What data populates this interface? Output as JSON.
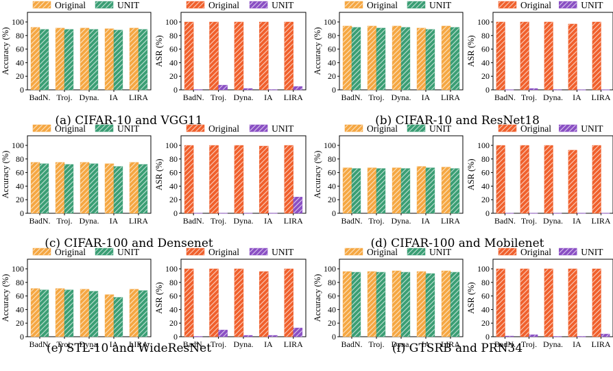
{
  "colors": {
    "acc_original": "#f5a742",
    "acc_unit": "#3a9e74",
    "asr_original": "#f0602c",
    "asr_unit": "#8a4fc4"
  },
  "chart_data": [
    {
      "type": "bar",
      "caption": "",
      "ylabel": "Accuracy (%)",
      "ylim": [
        0,
        100
      ],
      "yticks": [
        0,
        20,
        40,
        60,
        80,
        100
      ],
      "categories": [
        "BadN.",
        "Troj.",
        "Dyna.",
        "IA",
        "LIRA"
      ],
      "legend": "top",
      "series": [
        {
          "name": "Original",
          "values": [
            92,
            91,
            91,
            90,
            91
          ]
        },
        {
          "name": "UNIT",
          "values": [
            89,
            89,
            89,
            88,
            89
          ]
        }
      ]
    },
    {
      "type": "bar",
      "caption": "(a) CIFAR-10 and VGG11",
      "ylabel": "ASR (%)",
      "ylim": [
        0,
        100
      ],
      "yticks": [
        0,
        20,
        40,
        60,
        80,
        100
      ],
      "categories": [
        "BadN.",
        "Troj.",
        "Dyna.",
        "IA",
        "LIRA"
      ],
      "legend": "top",
      "series": [
        {
          "name": "Original",
          "values": [
            100,
            100,
            100,
            100,
            100
          ]
        },
        {
          "name": "UNIT",
          "values": [
            0.5,
            7,
            2,
            0.5,
            5
          ]
        }
      ]
    },
    {
      "type": "bar",
      "caption": "",
      "ylabel": "Accuracy (%)",
      "ylim": [
        0,
        100
      ],
      "yticks": [
        0,
        20,
        40,
        60,
        80,
        100
      ],
      "categories": [
        "BadN.",
        "Troj.",
        "Dyna.",
        "IA",
        "LIRA"
      ],
      "legend": "top",
      "series": [
        {
          "name": "Original",
          "values": [
            94,
            94,
            94,
            91,
            94
          ]
        },
        {
          "name": "UNIT",
          "values": [
            92,
            91,
            92,
            89,
            92
          ]
        }
      ]
    },
    {
      "type": "bar",
      "caption": "(b) CIFAR-10 and ResNet18",
      "ylabel": "ASR (%)",
      "ylim": [
        0,
        100
      ],
      "yticks": [
        0,
        20,
        40,
        60,
        80,
        100
      ],
      "categories": [
        "BadN.",
        "Troj.",
        "Dyna.",
        "IA",
        "LIRA"
      ],
      "legend": "top",
      "series": [
        {
          "name": "Original",
          "values": [
            100,
            100,
            100,
            97,
            100
          ]
        },
        {
          "name": "UNIT",
          "values": [
            0.3,
            2,
            0.5,
            0.3,
            0.3
          ]
        }
      ]
    },
    {
      "type": "bar",
      "caption": "",
      "ylabel": "Accuracy (%)",
      "ylim": [
        0,
        100
      ],
      "yticks": [
        0,
        20,
        40,
        60,
        80,
        100
      ],
      "categories": [
        "BadN.",
        "Troj.",
        "Dyna.",
        "IA",
        "LIRA"
      ],
      "legend": "top",
      "series": [
        {
          "name": "Original",
          "values": [
            75,
            75,
            75,
            73,
            75
          ]
        },
        {
          "name": "UNIT",
          "values": [
            73,
            72,
            73,
            69,
            72
          ]
        }
      ]
    },
    {
      "type": "bar",
      "caption": "(c) CIFAR-100 and Densenet",
      "ylabel": "ASR (%)",
      "ylim": [
        0,
        100
      ],
      "yticks": [
        0,
        20,
        40,
        60,
        80,
        100
      ],
      "categories": [
        "BadN.",
        "Troj.",
        "Dyna.",
        "IA",
        "LIRA"
      ],
      "legend": "top",
      "series": [
        {
          "name": "Original",
          "values": [
            100,
            100,
            100,
            99,
            100
          ]
        },
        {
          "name": "UNIT",
          "values": [
            0.3,
            0.3,
            0.3,
            0.3,
            24
          ]
        }
      ]
    },
    {
      "type": "bar",
      "caption": "",
      "ylabel": "Accuracy (%)",
      "ylim": [
        0,
        100
      ],
      "yticks": [
        0,
        20,
        40,
        60,
        80,
        100
      ],
      "categories": [
        "BadN.",
        "Troj.",
        "Dyna.",
        "IA",
        "LIRA"
      ],
      "legend": "top",
      "series": [
        {
          "name": "Original",
          "values": [
            67,
            67,
            67,
            69,
            68
          ]
        },
        {
          "name": "UNIT",
          "values": [
            66,
            66,
            66,
            67,
            66
          ]
        }
      ]
    },
    {
      "type": "bar",
      "caption": "(d) CIFAR-100 and Mobilenet",
      "ylabel": "ASR (%)",
      "ylim": [
        0,
        100
      ],
      "yticks": [
        0,
        20,
        40,
        60,
        80,
        100
      ],
      "categories": [
        "BadN.",
        "Troj.",
        "Dyna.",
        "IA",
        "LIRA"
      ],
      "legend": "top",
      "series": [
        {
          "name": "Original",
          "values": [
            100,
            100,
            100,
            93,
            100
          ]
        },
        {
          "name": "UNIT",
          "values": [
            0.3,
            0.3,
            0.3,
            0.3,
            0.3
          ]
        }
      ]
    },
    {
      "type": "bar",
      "caption": "",
      "ylabel": "Accuracy (%)",
      "ylim": [
        0,
        100
      ],
      "yticks": [
        0,
        20,
        40,
        60,
        80,
        100
      ],
      "categories": [
        "BadN.",
        "Troj.",
        "Dyna.",
        "IA",
        "LIRA"
      ],
      "legend": "top",
      "series": [
        {
          "name": "Original",
          "values": [
            71,
            71,
            70,
            62,
            70
          ]
        },
        {
          "name": "UNIT",
          "values": [
            69,
            69,
            67,
            58,
            68
          ]
        }
      ]
    },
    {
      "type": "bar",
      "caption": "(e) STL-10 and WideResNet",
      "ylabel": "ASR (%)",
      "ylim": [
        0,
        100
      ],
      "yticks": [
        0,
        20,
        40,
        60,
        80,
        100
      ],
      "categories": [
        "BadN.",
        "Troj.",
        "Dyna.",
        "IA",
        "LIRA"
      ],
      "legend": "top",
      "series": [
        {
          "name": "Original",
          "values": [
            100,
            100,
            100,
            96,
            100
          ]
        },
        {
          "name": "UNIT",
          "values": [
            0.5,
            10,
            2,
            2,
            13
          ]
        }
      ]
    },
    {
      "type": "bar",
      "caption": "",
      "ylabel": "Accuracy (%)",
      "ylim": [
        0,
        100
      ],
      "yticks": [
        0,
        20,
        40,
        60,
        80,
        100
      ],
      "categories": [
        "BadN.",
        "Troj.",
        "Dyna.",
        "IA",
        "LIRA"
      ],
      "legend": "top",
      "series": [
        {
          "name": "Original",
          "values": [
            96,
            96,
            97,
            96,
            97
          ]
        },
        {
          "name": "UNIT",
          "values": [
            95,
            95,
            95,
            93,
            95
          ]
        }
      ]
    },
    {
      "type": "bar",
      "caption": "(f) GTSRB and PRN34",
      "ylabel": "ASR (%)",
      "ylim": [
        0,
        100
      ],
      "yticks": [
        0,
        20,
        40,
        60,
        80,
        100
      ],
      "categories": [
        "BadN.",
        "Troj.",
        "Dyna.",
        "IA",
        "LIRA"
      ],
      "legend": "top",
      "series": [
        {
          "name": "Original",
          "values": [
            100,
            100,
            100,
            100,
            100
          ]
        },
        {
          "name": "UNIT",
          "values": [
            1,
            3,
            0.5,
            0.5,
            4
          ]
        }
      ]
    }
  ]
}
